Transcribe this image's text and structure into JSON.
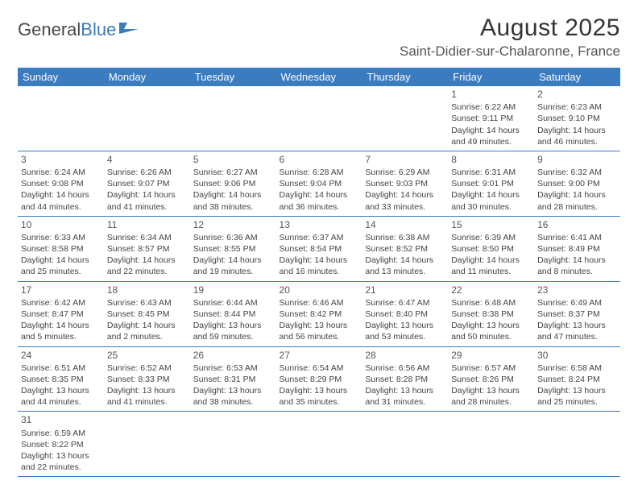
{
  "brand": {
    "part1": "General",
    "part2": "Blue"
  },
  "title": "August 2025",
  "location": "Saint-Didier-sur-Chalaronne, France",
  "colors": {
    "header_bg": "#3b7bbf",
    "header_text": "#ffffff",
    "cell_border": "#3b7bbf",
    "body_text": "#444444",
    "title_text": "#333333",
    "background": "#ffffff"
  },
  "weekdays": [
    "Sunday",
    "Monday",
    "Tuesday",
    "Wednesday",
    "Thursday",
    "Friday",
    "Saturday"
  ],
  "weeks": [
    [
      null,
      null,
      null,
      null,
      null,
      {
        "d": "1",
        "sr": "Sunrise: 6:22 AM",
        "ss": "Sunset: 9:11 PM",
        "dl1": "Daylight: 14 hours",
        "dl2": "and 49 minutes."
      },
      {
        "d": "2",
        "sr": "Sunrise: 6:23 AM",
        "ss": "Sunset: 9:10 PM",
        "dl1": "Daylight: 14 hours",
        "dl2": "and 46 minutes."
      }
    ],
    [
      {
        "d": "3",
        "sr": "Sunrise: 6:24 AM",
        "ss": "Sunset: 9:08 PM",
        "dl1": "Daylight: 14 hours",
        "dl2": "and 44 minutes."
      },
      {
        "d": "4",
        "sr": "Sunrise: 6:26 AM",
        "ss": "Sunset: 9:07 PM",
        "dl1": "Daylight: 14 hours",
        "dl2": "and 41 minutes."
      },
      {
        "d": "5",
        "sr": "Sunrise: 6:27 AM",
        "ss": "Sunset: 9:06 PM",
        "dl1": "Daylight: 14 hours",
        "dl2": "and 38 minutes."
      },
      {
        "d": "6",
        "sr": "Sunrise: 6:28 AM",
        "ss": "Sunset: 9:04 PM",
        "dl1": "Daylight: 14 hours",
        "dl2": "and 36 minutes."
      },
      {
        "d": "7",
        "sr": "Sunrise: 6:29 AM",
        "ss": "Sunset: 9:03 PM",
        "dl1": "Daylight: 14 hours",
        "dl2": "and 33 minutes."
      },
      {
        "d": "8",
        "sr": "Sunrise: 6:31 AM",
        "ss": "Sunset: 9:01 PM",
        "dl1": "Daylight: 14 hours",
        "dl2": "and 30 minutes."
      },
      {
        "d": "9",
        "sr": "Sunrise: 6:32 AM",
        "ss": "Sunset: 9:00 PM",
        "dl1": "Daylight: 14 hours",
        "dl2": "and 28 minutes."
      }
    ],
    [
      {
        "d": "10",
        "sr": "Sunrise: 6:33 AM",
        "ss": "Sunset: 8:58 PM",
        "dl1": "Daylight: 14 hours",
        "dl2": "and 25 minutes."
      },
      {
        "d": "11",
        "sr": "Sunrise: 6:34 AM",
        "ss": "Sunset: 8:57 PM",
        "dl1": "Daylight: 14 hours",
        "dl2": "and 22 minutes."
      },
      {
        "d": "12",
        "sr": "Sunrise: 6:36 AM",
        "ss": "Sunset: 8:55 PM",
        "dl1": "Daylight: 14 hours",
        "dl2": "and 19 minutes."
      },
      {
        "d": "13",
        "sr": "Sunrise: 6:37 AM",
        "ss": "Sunset: 8:54 PM",
        "dl1": "Daylight: 14 hours",
        "dl2": "and 16 minutes."
      },
      {
        "d": "14",
        "sr": "Sunrise: 6:38 AM",
        "ss": "Sunset: 8:52 PM",
        "dl1": "Daylight: 14 hours",
        "dl2": "and 13 minutes."
      },
      {
        "d": "15",
        "sr": "Sunrise: 6:39 AM",
        "ss": "Sunset: 8:50 PM",
        "dl1": "Daylight: 14 hours",
        "dl2": "and 11 minutes."
      },
      {
        "d": "16",
        "sr": "Sunrise: 6:41 AM",
        "ss": "Sunset: 8:49 PM",
        "dl1": "Daylight: 14 hours",
        "dl2": "and 8 minutes."
      }
    ],
    [
      {
        "d": "17",
        "sr": "Sunrise: 6:42 AM",
        "ss": "Sunset: 8:47 PM",
        "dl1": "Daylight: 14 hours",
        "dl2": "and 5 minutes."
      },
      {
        "d": "18",
        "sr": "Sunrise: 6:43 AM",
        "ss": "Sunset: 8:45 PM",
        "dl1": "Daylight: 14 hours",
        "dl2": "and 2 minutes."
      },
      {
        "d": "19",
        "sr": "Sunrise: 6:44 AM",
        "ss": "Sunset: 8:44 PM",
        "dl1": "Daylight: 13 hours",
        "dl2": "and 59 minutes."
      },
      {
        "d": "20",
        "sr": "Sunrise: 6:46 AM",
        "ss": "Sunset: 8:42 PM",
        "dl1": "Daylight: 13 hours",
        "dl2": "and 56 minutes."
      },
      {
        "d": "21",
        "sr": "Sunrise: 6:47 AM",
        "ss": "Sunset: 8:40 PM",
        "dl1": "Daylight: 13 hours",
        "dl2": "and 53 minutes."
      },
      {
        "d": "22",
        "sr": "Sunrise: 6:48 AM",
        "ss": "Sunset: 8:38 PM",
        "dl1": "Daylight: 13 hours",
        "dl2": "and 50 minutes."
      },
      {
        "d": "23",
        "sr": "Sunrise: 6:49 AM",
        "ss": "Sunset: 8:37 PM",
        "dl1": "Daylight: 13 hours",
        "dl2": "and 47 minutes."
      }
    ],
    [
      {
        "d": "24",
        "sr": "Sunrise: 6:51 AM",
        "ss": "Sunset: 8:35 PM",
        "dl1": "Daylight: 13 hours",
        "dl2": "and 44 minutes."
      },
      {
        "d": "25",
        "sr": "Sunrise: 6:52 AM",
        "ss": "Sunset: 8:33 PM",
        "dl1": "Daylight: 13 hours",
        "dl2": "and 41 minutes."
      },
      {
        "d": "26",
        "sr": "Sunrise: 6:53 AM",
        "ss": "Sunset: 8:31 PM",
        "dl1": "Daylight: 13 hours",
        "dl2": "and 38 minutes."
      },
      {
        "d": "27",
        "sr": "Sunrise: 6:54 AM",
        "ss": "Sunset: 8:29 PM",
        "dl1": "Daylight: 13 hours",
        "dl2": "and 35 minutes."
      },
      {
        "d": "28",
        "sr": "Sunrise: 6:56 AM",
        "ss": "Sunset: 8:28 PM",
        "dl1": "Daylight: 13 hours",
        "dl2": "and 31 minutes."
      },
      {
        "d": "29",
        "sr": "Sunrise: 6:57 AM",
        "ss": "Sunset: 8:26 PM",
        "dl1": "Daylight: 13 hours",
        "dl2": "and 28 minutes."
      },
      {
        "d": "30",
        "sr": "Sunrise: 6:58 AM",
        "ss": "Sunset: 8:24 PM",
        "dl1": "Daylight: 13 hours",
        "dl2": "and 25 minutes."
      }
    ],
    [
      {
        "d": "31",
        "sr": "Sunrise: 6:59 AM",
        "ss": "Sunset: 8:22 PM",
        "dl1": "Daylight: 13 hours",
        "dl2": "and 22 minutes."
      },
      null,
      null,
      null,
      null,
      null,
      null
    ]
  ]
}
